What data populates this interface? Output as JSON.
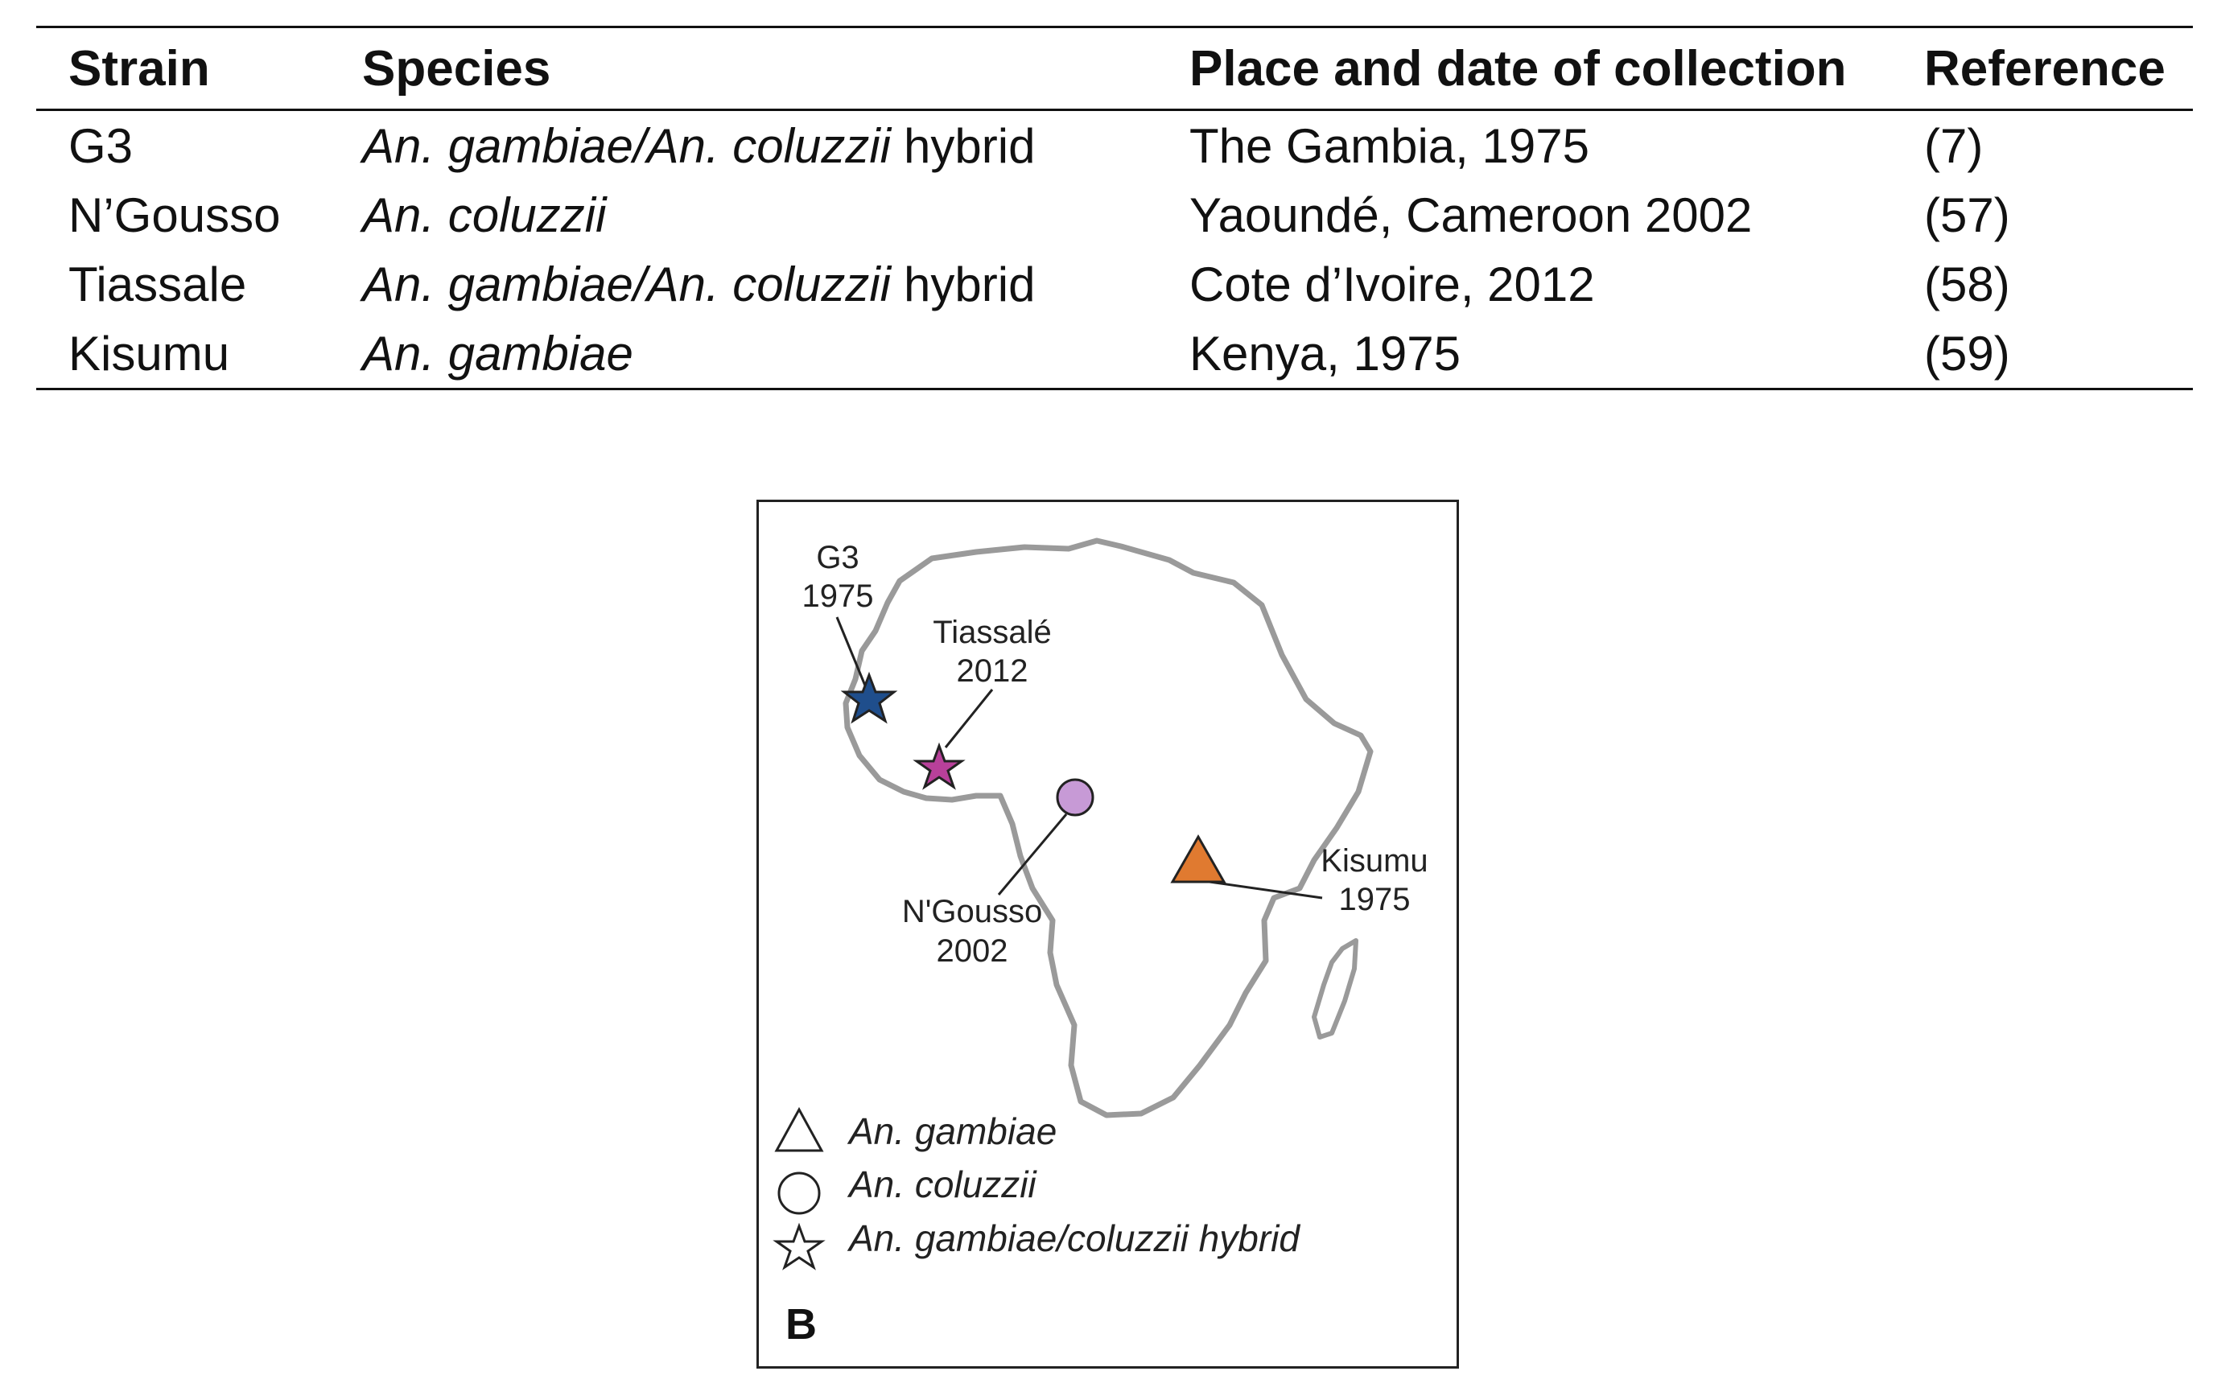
{
  "table": {
    "headers": {
      "strain": "Strain",
      "species": "Species",
      "place": "Place and date of collection",
      "reference": "Reference"
    },
    "rows": [
      {
        "strain": "G3",
        "species_italic": "An. gambiae/An. coluzzii",
        "species_suffix": "hybrid",
        "place": "The Gambia, 1975",
        "reference": "(7)"
      },
      {
        "strain": "N’Gousso",
        "species_italic": "An. coluzzii",
        "species_suffix": "",
        "place": "Yaoundé, Cameroon 2002",
        "reference": "(57)"
      },
      {
        "strain": "Tiassale",
        "species_italic": "An. gambiae/An. coluzzii",
        "species_suffix": "hybrid",
        "place": "Cote d’Ivoire, 2012",
        "reference": "(58)"
      },
      {
        "strain": "Kisumu",
        "species_italic": "An. gambiae",
        "species_suffix": "",
        "place": "Kenya, 1975",
        "reference": "(59)"
      }
    ]
  },
  "map": {
    "panel_letter": "B",
    "markers": {
      "g3": {
        "name": "G3",
        "year": "1975",
        "shape": "star",
        "color": "#1f4e8c"
      },
      "tiassale": {
        "name": "Tiassalé",
        "year": "2012",
        "shape": "star",
        "color": "#b8409a"
      },
      "ngousso": {
        "name": "N'Gousso",
        "year": "2002",
        "shape": "circle",
        "color": "#c79ad6"
      },
      "kisumu": {
        "name": "Kisumu",
        "year": "1975",
        "shape": "triangle",
        "color": "#e07a30"
      }
    },
    "legend": [
      {
        "label": "An. gambiae",
        "icon": "triangle-outline"
      },
      {
        "label": "An. coluzzii",
        "icon": "circle-outline"
      },
      {
        "label": "An. gambiae/coluzzii hybrid",
        "icon": "star-outline"
      }
    ],
    "outline_color": "#9a9a9a"
  }
}
